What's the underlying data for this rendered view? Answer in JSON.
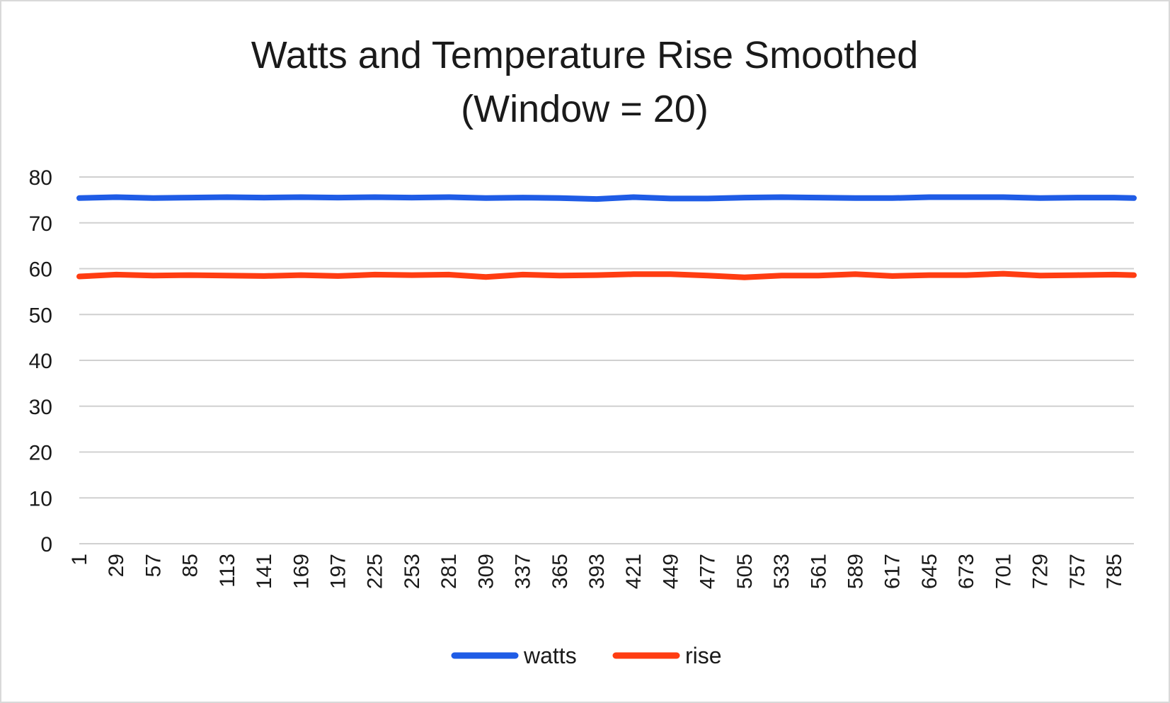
{
  "chart_data": {
    "type": "line",
    "title": "Watts and Temperature Rise Smoothed",
    "subtitle": "(Window = 20)",
    "xlabel": "",
    "ylabel": "",
    "ylim": [
      0,
      80
    ],
    "y_ticks": [
      "0",
      "10",
      "20",
      "30",
      "40",
      "50",
      "60",
      "70",
      "80"
    ],
    "x_range": [
      1,
      800
    ],
    "x_tick_labels": [
      "1",
      "29",
      "57",
      "85",
      "113",
      "141",
      "169",
      "197",
      "225",
      "253",
      "281",
      "309",
      "337",
      "365",
      "393",
      "421",
      "449",
      "477",
      "505",
      "533",
      "561",
      "589",
      "617",
      "645",
      "673",
      "701",
      "729",
      "757",
      "785"
    ],
    "grid": true,
    "legend_position": "bottom",
    "series": [
      {
        "name": "watts",
        "color": "#1f5ce6",
        "x": [
          1,
          29,
          57,
          85,
          113,
          141,
          169,
          197,
          225,
          253,
          281,
          309,
          337,
          365,
          393,
          421,
          449,
          477,
          505,
          533,
          561,
          589,
          617,
          645,
          673,
          701,
          729,
          757,
          785,
          800
        ],
        "values": [
          75.4,
          75.6,
          75.4,
          75.5,
          75.6,
          75.5,
          75.6,
          75.5,
          75.6,
          75.5,
          75.6,
          75.4,
          75.5,
          75.4,
          75.2,
          75.6,
          75.3,
          75.3,
          75.5,
          75.6,
          75.5,
          75.4,
          75.4,
          75.6,
          75.6,
          75.6,
          75.4,
          75.5,
          75.5,
          75.4
        ]
      },
      {
        "name": "rise",
        "color": "#ff3d12",
        "x": [
          1,
          29,
          57,
          85,
          113,
          141,
          169,
          197,
          225,
          253,
          281,
          309,
          337,
          365,
          393,
          421,
          449,
          477,
          505,
          533,
          561,
          589,
          617,
          645,
          673,
          701,
          729,
          757,
          785,
          800
        ],
        "values": [
          58.3,
          58.7,
          58.5,
          58.6,
          58.5,
          58.4,
          58.6,
          58.4,
          58.7,
          58.6,
          58.7,
          58.2,
          58.7,
          58.5,
          58.6,
          58.8,
          58.8,
          58.5,
          58.1,
          58.5,
          58.5,
          58.8,
          58.4,
          58.6,
          58.6,
          58.9,
          58.5,
          58.6,
          58.7,
          58.6
        ]
      }
    ]
  }
}
